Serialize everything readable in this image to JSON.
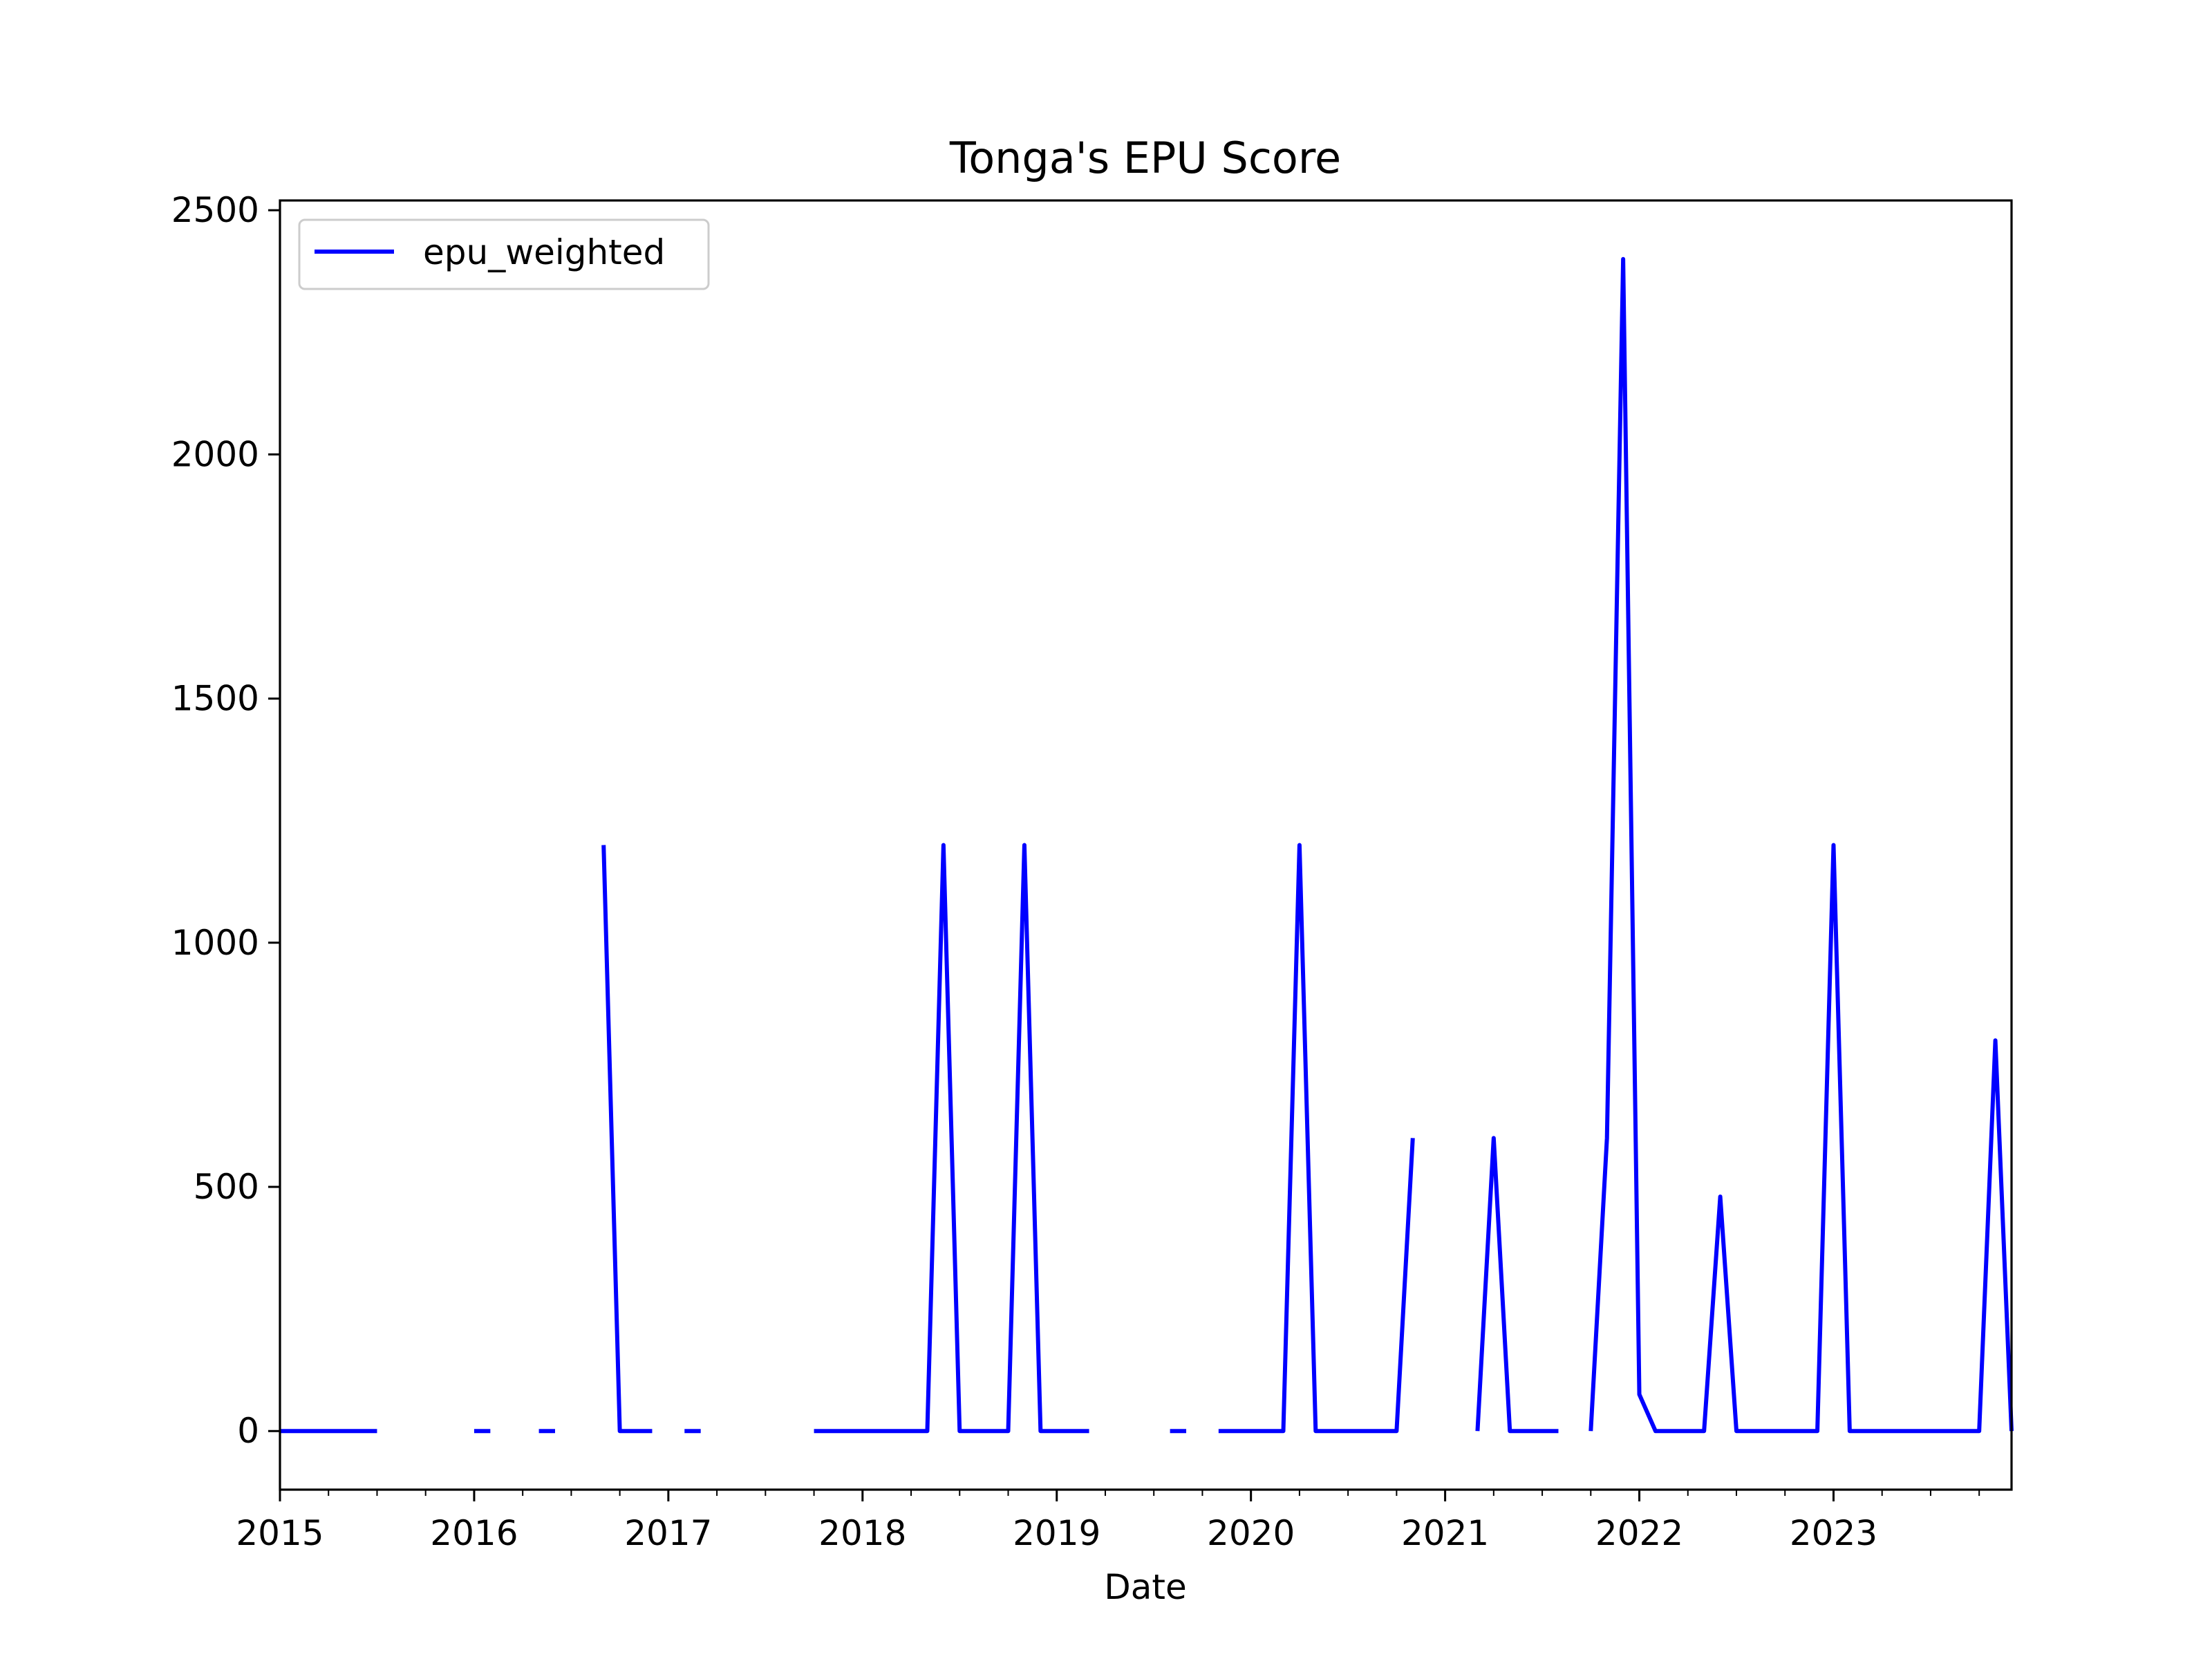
{
  "chart_data": {
    "type": "line",
    "title": "Tonga's EPU Score",
    "xlabel": "Date",
    "ylabel": "",
    "x_axis": "date (monthly)",
    "xlim": [
      "2015-01",
      "2023-12"
    ],
    "ylim": [
      -120,
      2520
    ],
    "x_ticks": [
      "2015",
      "2016",
      "2017",
      "2018",
      "2019",
      "2020",
      "2021",
      "2022",
      "2023"
    ],
    "y_ticks": [
      0,
      500,
      1000,
      1500,
      2000,
      2500
    ],
    "grid": false,
    "legend": {
      "position": "top-left"
    },
    "series": [
      {
        "name": "epu_weighted",
        "color": "#0000ff",
        "points": [
          [
            "2015-01",
            0
          ],
          [
            "2015-02",
            0
          ],
          [
            "2015-03",
            0
          ],
          [
            "2015-04",
            0
          ],
          [
            "2015-05",
            0
          ],
          [
            "2015-06",
            0
          ],
          [
            "2015-07",
            0
          ],
          [
            "2016-01",
            0
          ],
          [
            "2016-02",
            0
          ],
          [
            "2016-05",
            0
          ],
          [
            "2016-06",
            0
          ],
          [
            "2016-09",
            1200
          ],
          [
            "2016-10",
            0
          ],
          [
            "2016-11",
            0
          ],
          [
            "2016-12",
            0
          ],
          [
            "2017-02",
            0
          ],
          [
            "2017-03",
            0
          ],
          [
            "2017-10",
            0
          ],
          [
            "2017-11",
            0
          ],
          [
            "2017-12",
            0
          ],
          [
            "2018-01",
            0
          ],
          [
            "2018-02",
            0
          ],
          [
            "2018-03",
            0
          ],
          [
            "2018-04",
            0
          ],
          [
            "2018-05",
            0
          ],
          [
            "2018-06",
            1200
          ],
          [
            "2018-07",
            0
          ],
          [
            "2018-08",
            0
          ],
          [
            "2018-09",
            0
          ],
          [
            "2018-10",
            0
          ],
          [
            "2018-11",
            1200
          ],
          [
            "2018-12",
            0
          ],
          [
            "2019-01",
            0
          ],
          [
            "2019-02",
            0
          ],
          [
            "2019-03",
            0
          ],
          [
            "2019-08",
            0
          ],
          [
            "2019-09",
            0
          ],
          [
            "2019-11",
            0
          ],
          [
            "2019-12",
            0
          ],
          [
            "2020-01",
            0
          ],
          [
            "2020-02",
            0
          ],
          [
            "2020-03",
            0
          ],
          [
            "2020-04",
            1200
          ],
          [
            "2020-05",
            0
          ],
          [
            "2020-06",
            0
          ],
          [
            "2020-07",
            0
          ],
          [
            "2020-08",
            0
          ],
          [
            "2020-09",
            0
          ],
          [
            "2020-10",
            0
          ],
          [
            "2020-11",
            600
          ],
          [
            "2021-03",
            0
          ],
          [
            "2021-04",
            600
          ],
          [
            "2021-05",
            0
          ],
          [
            "2021-06",
            0
          ],
          [
            "2021-07",
            0
          ],
          [
            "2021-08",
            0
          ],
          [
            "2021-10",
            0
          ],
          [
            "2021-11",
            600
          ],
          [
            "2021-12",
            2400
          ],
          [
            "2022-01",
            75
          ],
          [
            "2022-02",
            0
          ],
          [
            "2022-03",
            0
          ],
          [
            "2022-04",
            0
          ],
          [
            "2022-05",
            0
          ],
          [
            "2022-06",
            480
          ],
          [
            "2022-07",
            0
          ],
          [
            "2022-08",
            0
          ],
          [
            "2022-09",
            0
          ],
          [
            "2022-10",
            0
          ],
          [
            "2022-11",
            0
          ],
          [
            "2022-12",
            0
          ],
          [
            "2023-01",
            1200
          ],
          [
            "2023-02",
            0
          ],
          [
            "2023-03",
            0
          ],
          [
            "2023-04",
            0
          ],
          [
            "2023-05",
            0
          ],
          [
            "2023-06",
            0
          ],
          [
            "2023-07",
            0
          ],
          [
            "2023-08",
            0
          ],
          [
            "2023-09",
            0
          ],
          [
            "2023-10",
            0
          ],
          [
            "2023-11",
            800
          ],
          [
            "2023-12",
            0
          ]
        ]
      }
    ]
  }
}
